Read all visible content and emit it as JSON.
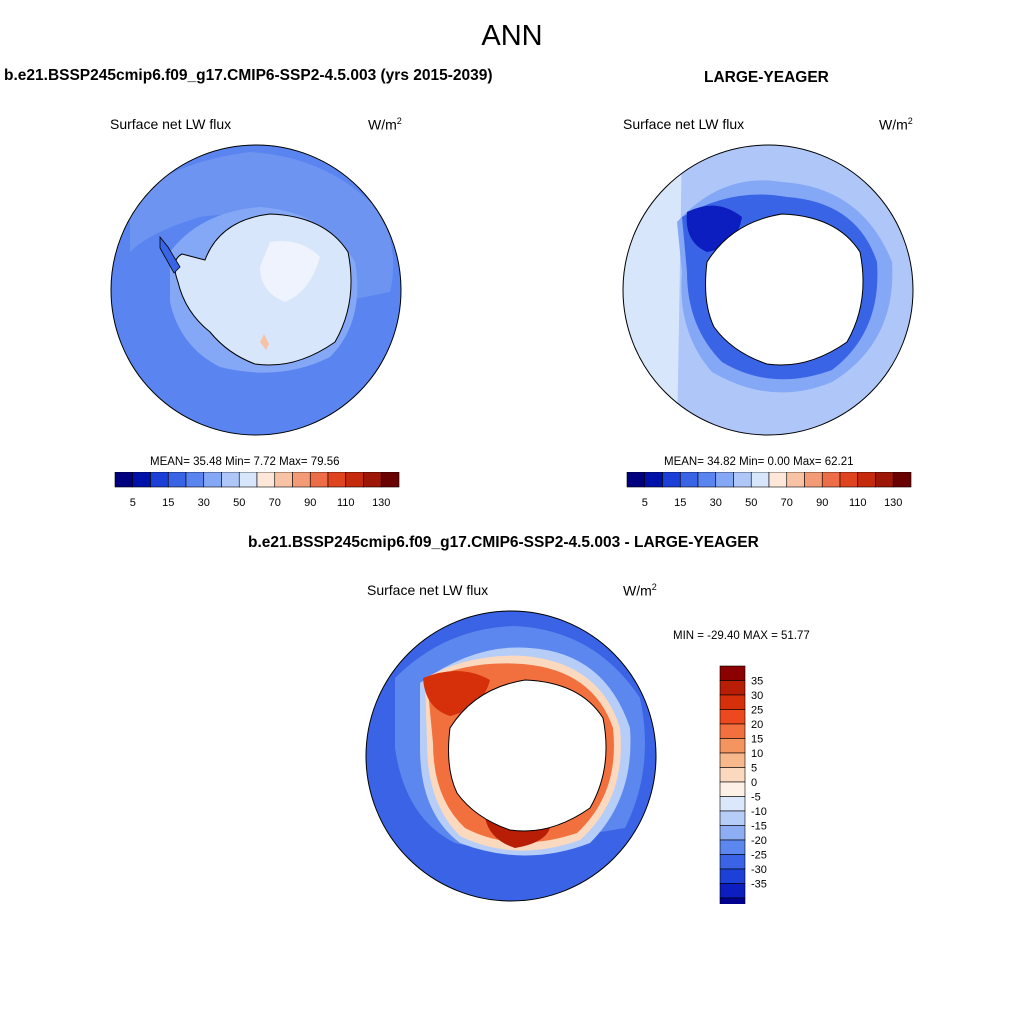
{
  "title": "ANN",
  "panels": [
    {
      "title": "b.e21.BSSP245cmip6.f09_g17.CMIP6-SSP2-4.5.003 (yrs 2015-2039)",
      "variable": "Surface net LW flux",
      "units": "W/m",
      "units_sup": "2",
      "stats": "MEAN=  35.48  Min=   7.72  Max=  79.56",
      "colorbar": {
        "colors": [
          "#00007f",
          "#0011aa",
          "#1c3fd8",
          "#3a64e6",
          "#5a84ef",
          "#84a7f6",
          "#aec6f8",
          "#d7e6fb",
          "#fde7d8",
          "#f8c2a4",
          "#f39b76",
          "#ec6d47",
          "#e0441f",
          "#c42a0b",
          "#9c1705",
          "#6b0202"
        ],
        "labels": [
          "5",
          "15",
          "30",
          "50",
          "70",
          "90",
          "110",
          "130"
        ]
      }
    },
    {
      "title": "LARGE-YEAGER",
      "variable": "Surface net LW flux",
      "units": "W/m",
      "units_sup": "2",
      "stats": "MEAN=  34.82  Min=   0.00  Max=  62.21",
      "colorbar": {
        "colors": [
          "#00007f",
          "#0011aa",
          "#1c3fd8",
          "#3a64e6",
          "#5a84ef",
          "#84a7f6",
          "#aec6f8",
          "#d7e6fb",
          "#fde7d8",
          "#f8c2a4",
          "#f39b76",
          "#ec6d47",
          "#e0441f",
          "#c42a0b",
          "#9c1705",
          "#6b0202"
        ],
        "labels": [
          "5",
          "15",
          "30",
          "50",
          "70",
          "90",
          "110",
          "130"
        ]
      }
    }
  ],
  "diff_panel": {
    "title": "b.e21.BSSP245cmip6.f09_g17.CMIP6-SSP2-4.5.003 - LARGE-YEAGER",
    "variable": "Surface net LW flux",
    "units": "W/m",
    "units_sup": "2",
    "stats": "MIN = -29.40 MAX =  51.77",
    "colorbar": {
      "colors": [
        "#8b0000",
        "#b81d05",
        "#d6300a",
        "#ec4a1e",
        "#f2703e",
        "#f49560",
        "#f7b98c",
        "#fbd9be",
        "#fdf0e6",
        "#dbe8fb",
        "#b6cdf8",
        "#8eaef3",
        "#5c87ee",
        "#3a63e6",
        "#1d40d6",
        "#0c1ec0",
        "#000090"
      ],
      "labels": [
        "35",
        "30",
        "25",
        "20",
        "15",
        "10",
        "5",
        "0",
        "-5",
        "-10",
        "-15",
        "-20",
        "-25",
        "-30",
        "-35"
      ]
    }
  },
  "colors": {
    "ocean_mid": "#5a84ef",
    "ocean_light": "#84a7f6",
    "ice_pale": "#d7e6fb",
    "land_white": "#ffffff",
    "coast": "#000000"
  }
}
